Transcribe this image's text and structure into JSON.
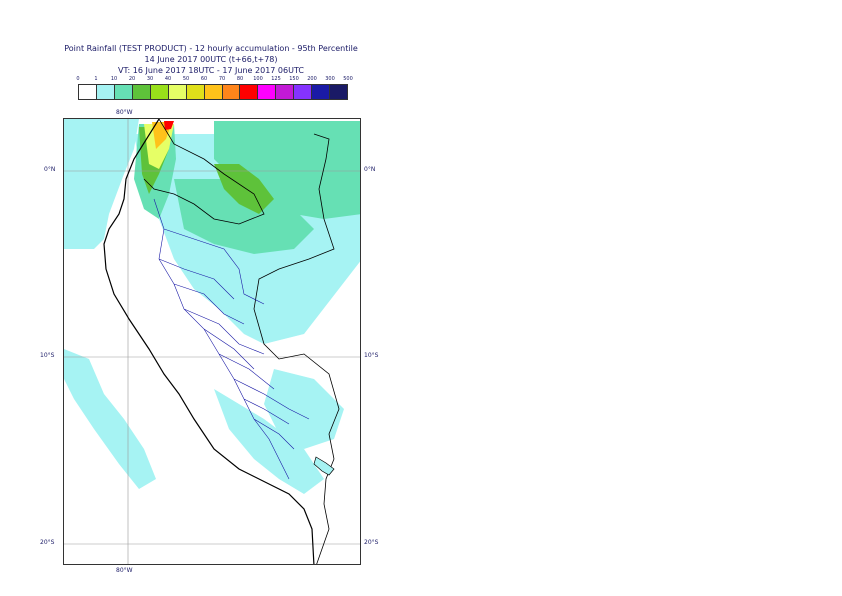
{
  "title": {
    "line1": "Point Rainfall (TEST PRODUCT) - 12 hourly accumulation - 95th Percentile",
    "line2": "14 June 2017 00UTC (t+66,t+78)",
    "line3": "VT: 16 June 2017 18UTC - 17 June 2017 06UTC"
  },
  "legend": {
    "labels": [
      "0",
      "1",
      "10",
      "20",
      "30",
      "40",
      "50",
      "60",
      "70",
      "80",
      "100",
      "125",
      "150",
      "200",
      "300",
      "500"
    ],
    "colors": [
      "#ffffff",
      "#a6f3f3",
      "#66e0b4",
      "#5ec23a",
      "#99e01a",
      "#e6ff66",
      "#e0e01a",
      "#ffc21a",
      "#ff851a",
      "#ff0000",
      "#ff00ff",
      "#c21ad6",
      "#8533ff",
      "#1a1aa6",
      "#1a1a66"
    ]
  },
  "map": {
    "lon_label_top": "80°W",
    "lon_label_bottom": "80°W",
    "lat_labels_left": [
      "0°N",
      "10°S",
      "20°S"
    ],
    "lat_labels_right": [
      "0°N",
      "10°S",
      "20°S"
    ]
  }
}
